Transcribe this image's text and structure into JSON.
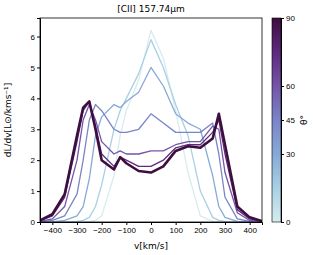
{
  "chart_data": {
    "type": "line",
    "title": "[CII] 157.74μm",
    "x_label": "v[km/s]",
    "y_label": "dL/dv[L⊙/kms⁻¹]",
    "x": [
      -450,
      -400,
      -350,
      -300,
      -275,
      -250,
      -225,
      -200,
      -150,
      -125,
      -100,
      -50,
      0,
      50,
      100,
      150,
      200,
      250,
      275,
      300,
      350,
      400,
      450
    ],
    "xlim": [
      -450,
      450
    ],
    "xticks": [
      {
        "value": -400,
        "label": "−400"
      },
      {
        "value": -300,
        "label": "−300"
      },
      {
        "value": -200,
        "label": "−200"
      },
      {
        "value": -100,
        "label": "−100"
      },
      0,
      100,
      200,
      300,
      400
    ],
    "ylim": [
      0,
      6.6
    ],
    "yticks": [
      0,
      1,
      2,
      3,
      4,
      5,
      6
    ],
    "grid": false,
    "colorbar": {
      "label": "θ°",
      "lim": [
        0,
        90
      ],
      "ticks": [
        0,
        30,
        45,
        60,
        90
      ]
    },
    "series": [
      {
        "theta": 0,
        "color": "#d6ecef",
        "values": [
          0,
          0,
          0,
          0,
          0,
          0.01,
          0.05,
          0.2,
          1.5,
          2.8,
          3.6,
          4.6,
          6.2,
          5.3,
          3.6,
          1.6,
          0.2,
          0.02,
          0,
          0,
          0,
          0,
          0
        ]
      },
      {
        "theta": 15,
        "color": "#a9d0e4",
        "values": [
          0,
          0,
          0,
          0.02,
          0.05,
          0.15,
          0.5,
          1.2,
          3.0,
          3.6,
          4.0,
          4.8,
          5.9,
          5.0,
          3.8,
          2.8,
          1.0,
          0.15,
          0.05,
          0.02,
          0,
          0,
          0
        ]
      },
      {
        "theta": 30,
        "color": "#87a9d6",
        "values": [
          0,
          0,
          0.05,
          0.2,
          0.5,
          1.4,
          2.8,
          3.4,
          3.8,
          3.7,
          3.9,
          4.2,
          5.0,
          4.4,
          3.5,
          3.2,
          3.0,
          1.5,
          0.5,
          0.15,
          0.02,
          0,
          0
        ]
      },
      {
        "theta": 45,
        "color": "#7a85c8",
        "values": [
          0,
          0.05,
          0.2,
          0.9,
          2.0,
          3.3,
          3.8,
          3.6,
          3.0,
          2.9,
          2.9,
          3.0,
          3.5,
          3.2,
          2.9,
          2.9,
          2.9,
          3.2,
          2.2,
          0.8,
          0.1,
          0.02,
          0
        ]
      },
      {
        "theta": 60,
        "color": "#7454a8",
        "values": [
          0.02,
          0.1,
          0.5,
          2.0,
          3.3,
          3.8,
          3.3,
          2.6,
          2.2,
          2.3,
          2.2,
          2.2,
          2.3,
          2.3,
          2.5,
          2.6,
          2.6,
          3.1,
          3.0,
          1.6,
          0.3,
          0.05,
          0.01
        ]
      },
      {
        "theta": 75,
        "color": "#5e2a7c",
        "values": [
          0.04,
          0.2,
          0.8,
          2.6,
          3.6,
          3.9,
          3.1,
          2.2,
          1.8,
          2.1,
          2.0,
          1.8,
          1.8,
          2.0,
          2.4,
          2.5,
          2.5,
          2.9,
          3.3,
          2.2,
          0.4,
          0.1,
          0.02
        ]
      },
      {
        "theta": 90,
        "color": "#3d0e3e",
        "values": [
          0.05,
          0.25,
          0.9,
          2.8,
          3.7,
          3.9,
          3.0,
          2.0,
          1.7,
          2.1,
          1.9,
          1.65,
          1.6,
          1.8,
          2.3,
          2.45,
          2.4,
          2.7,
          3.5,
          2.5,
          0.5,
          0.15,
          0.03
        ]
      }
    ]
  }
}
